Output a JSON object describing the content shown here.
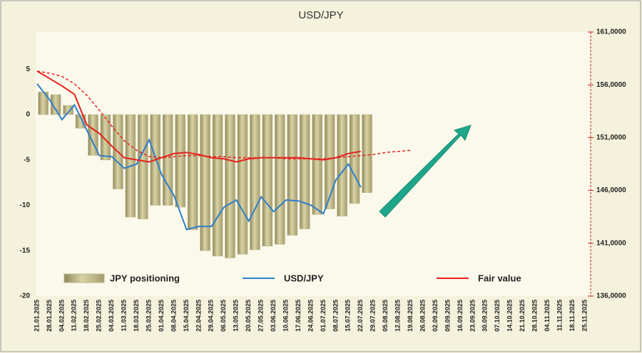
{
  "chart_data": {
    "type": "bar",
    "title": "USD/JPY",
    "categories": [
      "21.01.2025",
      "28.01.2025",
      "04.02.2025",
      "11.02.2025",
      "18.02.2025",
      "25.02.2025",
      "04.03.2025",
      "11.03.2025",
      "18.03.2025",
      "25.03.2025",
      "01.04.2025",
      "08.04.2025",
      "15.04.2025",
      "22.04.2025",
      "29.04.2025",
      "06.05.2025",
      "13.05.2025",
      "20.05.2025",
      "27.05.2025",
      "03.06.2025",
      "10.06.2025",
      "17.06.2025",
      "24.06.2025",
      "01.07.2025",
      "08.07.2025",
      "15.07.2025",
      "22.07.2025",
      "29.07.2025",
      "05.08.2025",
      "12.08.2025",
      "19.08.2025",
      "26.08.2025",
      "02.09.2025",
      "09.09.2025",
      "16.09.2025",
      "23.09.2025",
      "30.09.2025",
      "07.10.2025",
      "14.10.2025",
      "21.10.2025",
      "28.10.2025",
      "04.11.2025",
      "11.11.2025",
      "18.11.2025",
      "25.11.2025"
    ],
    "series": [
      {
        "name": "JPY positioning",
        "type": "bar",
        "color": "#bdb583",
        "values": [
          2.5,
          2.2,
          1.0,
          -1.5,
          -4.5,
          -5.0,
          -8.2,
          -11.3,
          -11.5,
          -10.0,
          -10.0,
          -10.2,
          -12.7,
          -15.0,
          -15.6,
          -15.8,
          -15.4,
          -14.9,
          -14.5,
          -14.3,
          -13.3,
          -12.6,
          -11.0,
          -10.4,
          -11.2,
          -9.8,
          -8.6,
          null,
          null,
          null,
          null,
          null,
          null,
          null,
          null,
          null,
          null,
          null,
          null,
          null,
          null,
          null,
          null,
          null,
          null
        ]
      },
      {
        "name": "USD/JPY",
        "type": "line",
        "color": "#2f7fc8",
        "axis": "y2",
        "values": [
          156.1,
          154.6,
          152.7,
          154.1,
          151.7,
          149.3,
          149.2,
          148.1,
          148.5,
          150.8,
          147.5,
          145.5,
          142.3,
          142.6,
          142.6,
          144.4,
          145.1,
          143.1,
          145.4,
          144.0,
          145.1,
          145.0,
          144.6,
          143.8,
          147.0,
          148.5,
          146.3,
          null,
          null,
          null,
          null,
          null,
          null,
          null,
          null,
          null,
          null,
          null,
          null,
          null,
          null,
          null,
          null,
          null,
          null
        ]
      },
      {
        "name": "Fair value",
        "type": "line",
        "color": "#e8201c",
        "axis": "y2",
        "values": [
          157.3,
          156.6,
          155.9,
          155.1,
          152.2,
          151.4,
          150.2,
          149.1,
          148.9,
          148.7,
          149.1,
          149.5,
          149.6,
          149.4,
          149.1,
          149.0,
          148.7,
          149.0,
          149.1,
          149.1,
          149.1,
          149.1,
          149.0,
          148.9,
          149.1,
          149.5,
          149.7,
          null,
          null,
          null,
          null,
          null,
          null,
          null,
          null,
          null,
          null,
          null,
          null,
          null,
          null,
          null,
          null,
          null,
          null
        ]
      },
      {
        "type": "line",
        "color": "#e8201c",
        "axis": "y2",
        "dashed": true,
        "values": [
          157.3,
          157.1,
          156.8,
          156.1,
          155.0,
          153.6,
          152.1,
          150.7,
          149.8,
          149.2,
          149.1,
          149.2,
          149.3,
          149.3,
          149.2,
          149.2,
          149.1,
          149.1,
          149.1,
          149.1,
          149.0,
          149.0,
          149.0,
          149.0,
          149.1,
          149.2,
          149.3,
          149.4,
          149.6,
          149.7,
          149.8,
          null,
          null,
          null,
          null,
          null,
          null,
          null,
          null,
          null,
          null,
          null,
          null,
          null,
          null
        ]
      }
    ],
    "ylim": [
      -20,
      9.1
    ],
    "yticks": [
      -20,
      -15,
      -10,
      -5,
      0,
      5
    ],
    "y2lim": [
      136,
      161
    ],
    "y2ticks": [
      {
        "value": 136,
        "label": "136,0000"
      },
      {
        "value": 141,
        "label": "141,0000"
      },
      {
        "value": 146,
        "label": "146,0000"
      },
      {
        "value": 151,
        "label": "151,0000"
      },
      {
        "value": 156,
        "label": "156,0000"
      },
      {
        "value": 161,
        "label": "161,0000"
      }
    ],
    "grid": false
  }
}
